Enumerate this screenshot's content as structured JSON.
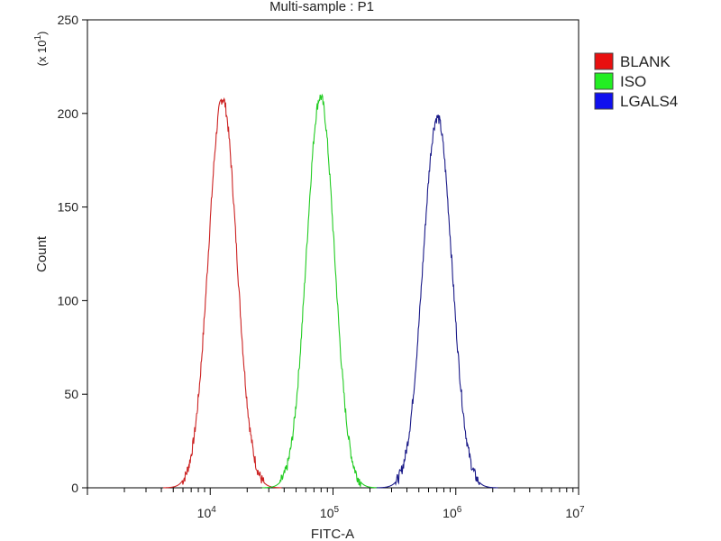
{
  "chart_data": {
    "type": "line",
    "title": "Multi-sample : P1",
    "xlabel": "FITC-A",
    "ylabel": "Count",
    "y_multiplier_label": "(x 10",
    "y_multiplier_exp": "1",
    "xscale": "log",
    "xlim": [
      1000,
      10000000
    ],
    "ylim": [
      0,
      250
    ],
    "x_ticks": [
      {
        "base": "10",
        "exp": "4",
        "value": 10000
      },
      {
        "base": "10",
        "exp": "5",
        "value": 100000
      },
      {
        "base": "10",
        "exp": "6",
        "value": 1000000
      },
      {
        "base": "10",
        "exp": "7",
        "value": 10000000
      }
    ],
    "y_ticks": [
      0,
      50,
      100,
      150,
      200,
      250
    ],
    "legend_position": "top-right",
    "series": [
      {
        "name": "BLANK",
        "color": "#cc2222",
        "swatch": "#e81010",
        "peak_x": 12600,
        "peak_y": 208,
        "width_decades": 0.115
      },
      {
        "name": "ISO",
        "color": "#22cc22",
        "swatch": "#22ee22",
        "peak_x": 79000,
        "peak_y": 209,
        "width_decades": 0.113
      },
      {
        "name": "LGALS4",
        "color": "#1a1a88",
        "swatch": "#1010ee",
        "peak_x": 708000,
        "peak_y": 198,
        "width_decades": 0.118
      }
    ]
  }
}
